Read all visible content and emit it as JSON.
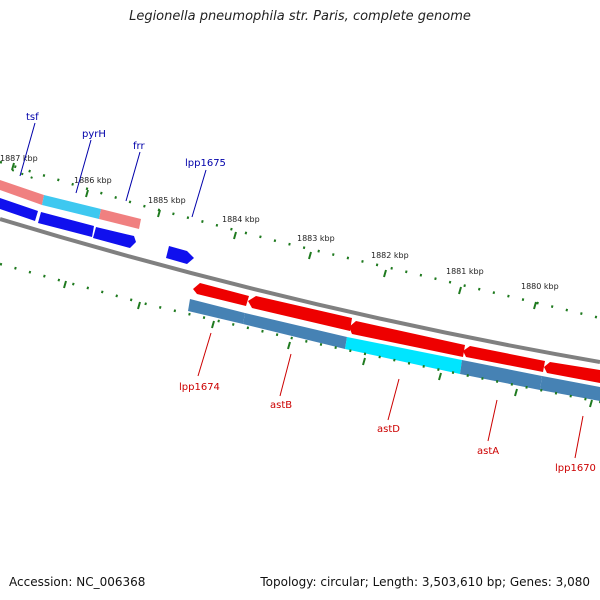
{
  "title": "Legionella pneumophila str. Paris, complete genome",
  "footer": {
    "accession": "Accession: NC_006368",
    "topology": "Topology: circular; Length: 3,503,610 bp; Genes: 3,080"
  },
  "colors": {
    "forward_gene": "#ff0000",
    "forward_gene_dim": "#f08080",
    "reverse_gene": "#0000ff",
    "reverse_cds": "#4682b4",
    "highlight": "#00d8ff",
    "tick": "#1f7a1f",
    "backbone": "#808080",
    "label_forward": "#0000aa",
    "label_reverse": "#cc0000"
  },
  "kbp_labels": [
    "1887 kbp",
    "1886 kbp",
    "1885 kbp",
    "1884 kbp",
    "1883 kbp",
    "1882 kbp",
    "1881 kbp",
    "1880 kbp"
  ],
  "gene_labels_top": [
    "tsf",
    "pyrH",
    "frr",
    "lpp1675"
  ],
  "gene_labels_bottom": [
    "lpp1674",
    "astB",
    "astD",
    "astA",
    "lpp1670"
  ]
}
